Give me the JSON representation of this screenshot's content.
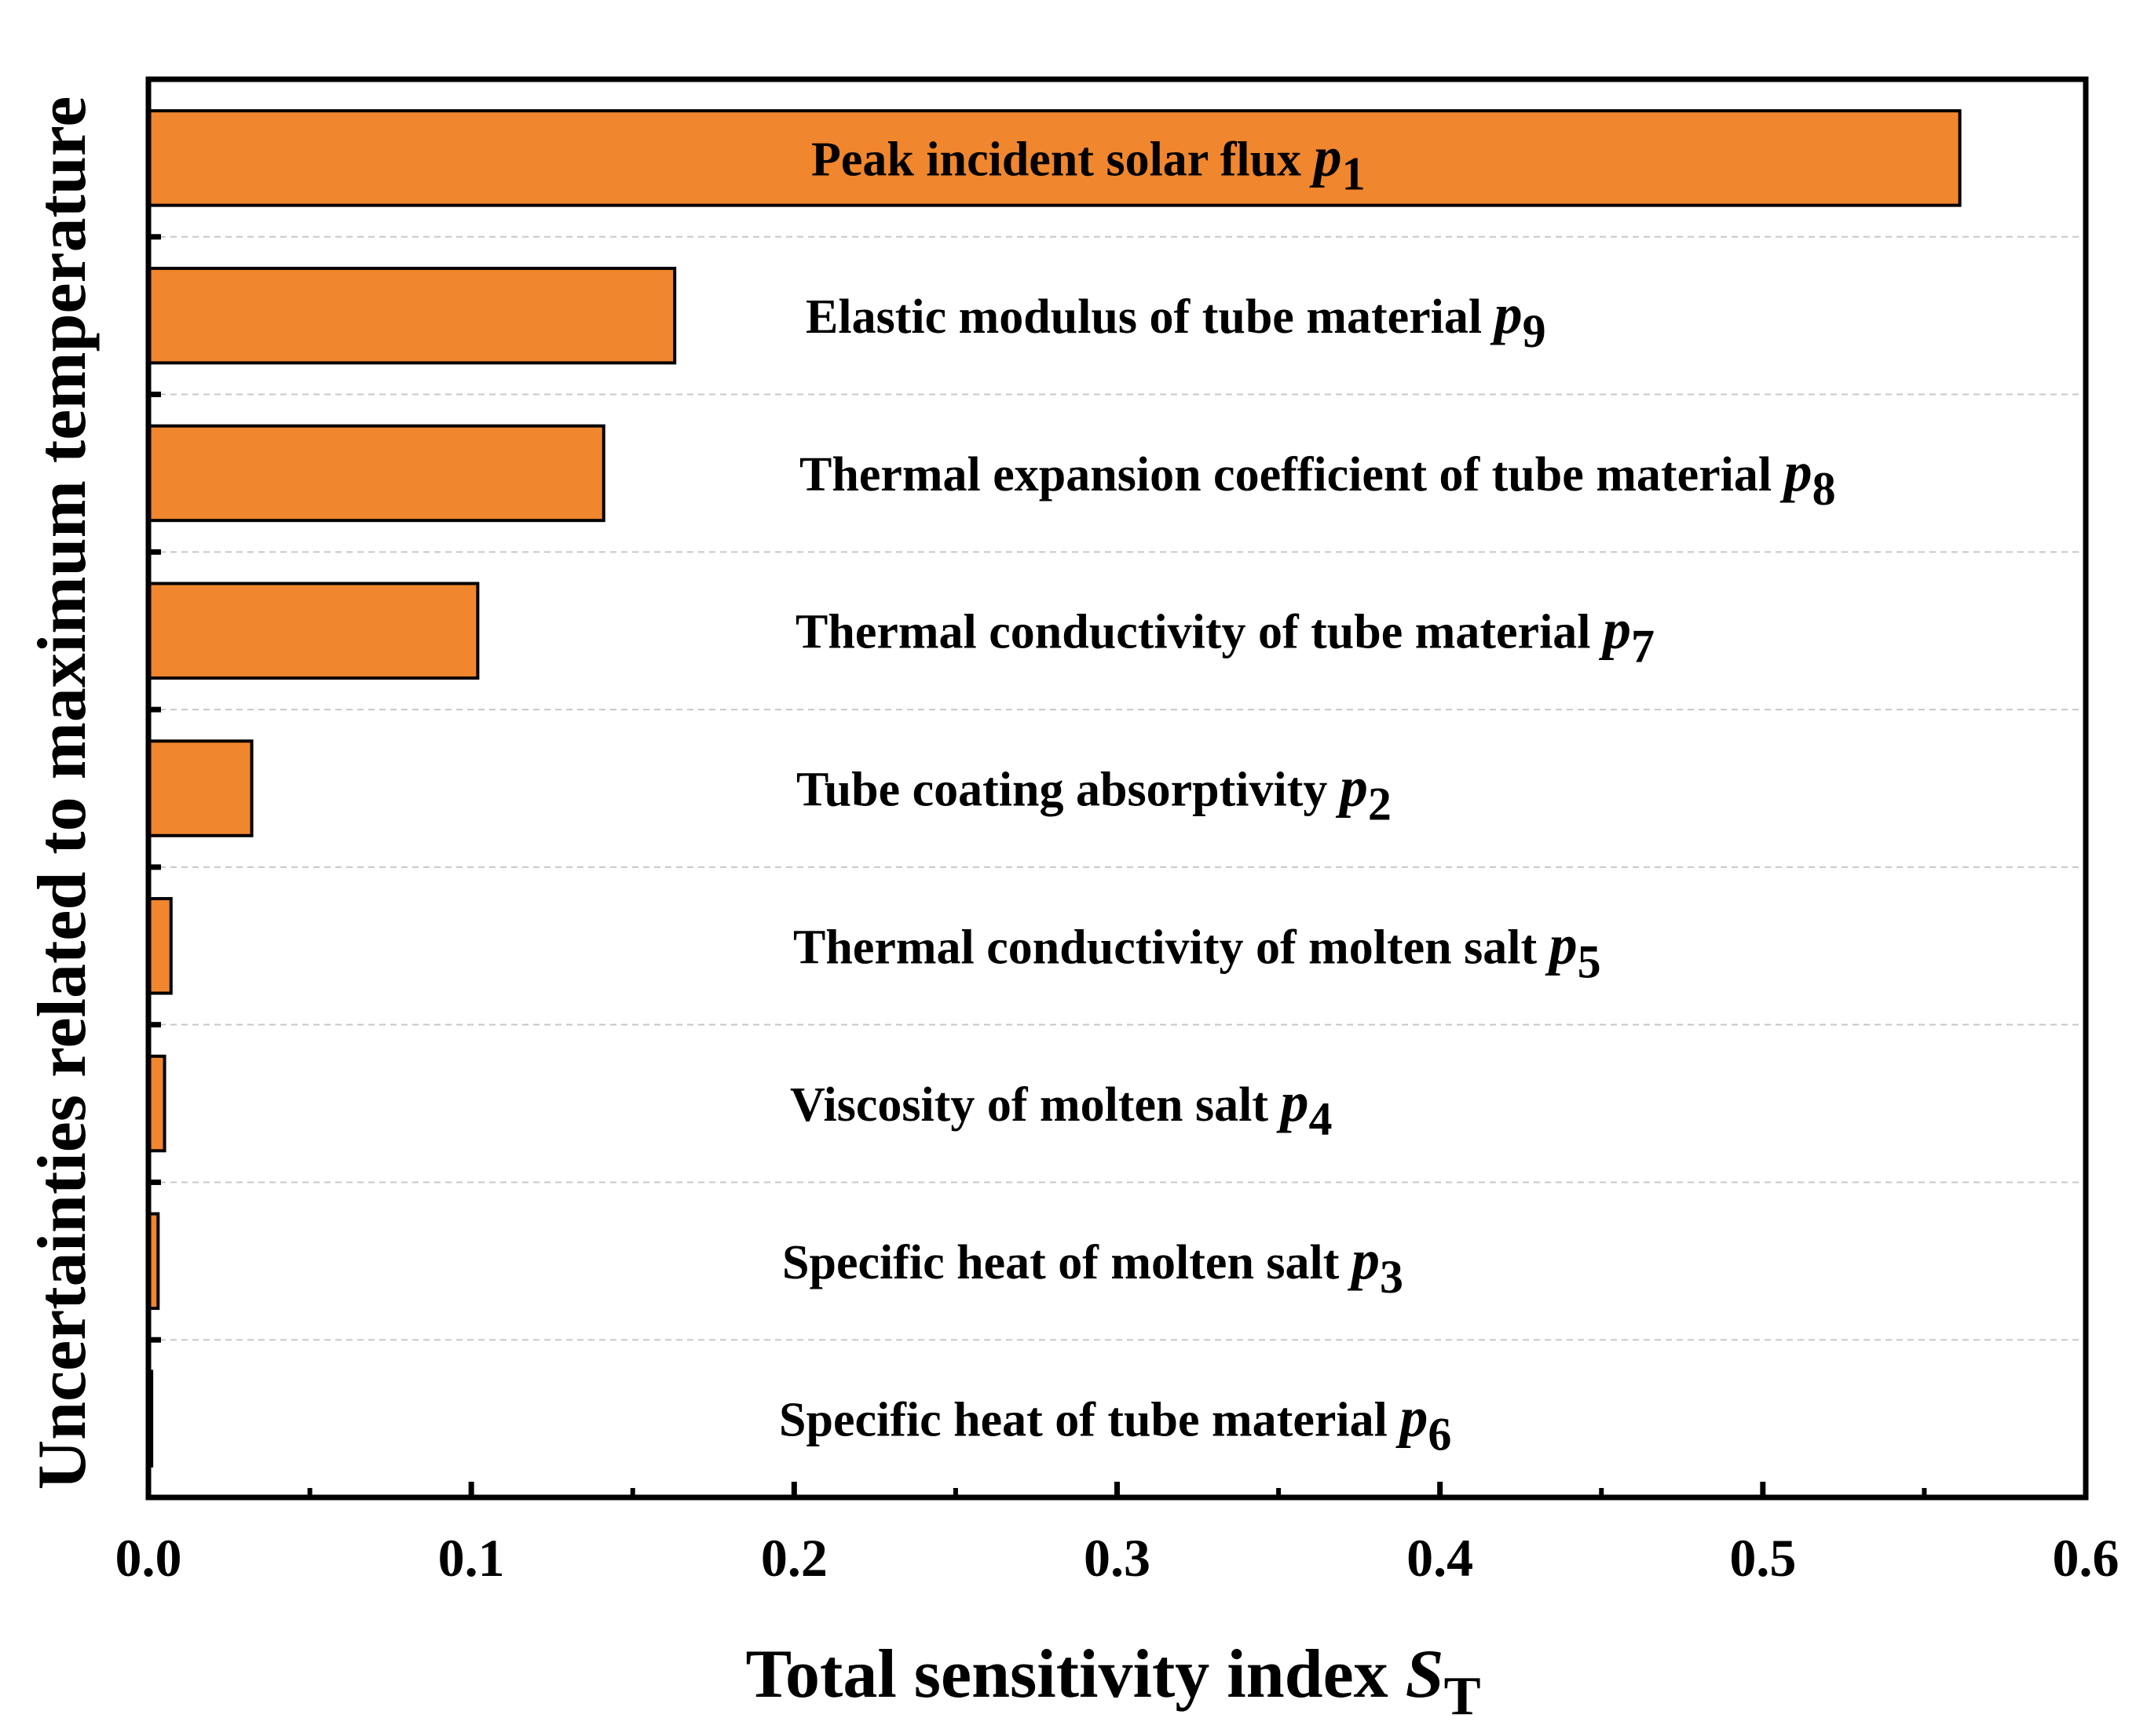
{
  "chart_data": {
    "type": "bar",
    "orientation": "horizontal",
    "title": "",
    "xlabel": "Total sensitivity index",
    "xlabel_symbol": "S",
    "xlabel_subscript": "T",
    "ylabel": "Uncertainties related to maximum temperature",
    "xlim": [
      0,
      0.6
    ],
    "x_ticks": [
      "0.0",
      "0.1",
      "0.2",
      "0.3",
      "0.4",
      "0.5",
      "0.6"
    ],
    "x_tick_values": [
      0,
      0.1,
      0.2,
      0.3,
      0.4,
      0.5,
      0.6
    ],
    "grid": "horizontal dashed",
    "bar_color": "#F0862D",
    "categories": [
      {
        "text": "Peak incident solar flux",
        "symbol": "p",
        "sub": "1",
        "value": 0.561
      },
      {
        "text": "Elastic modulus of tube material",
        "symbol": "p",
        "sub": "9",
        "value": 0.163
      },
      {
        "text": "Thermal expansion coefficient of tube material",
        "symbol": "p",
        "sub": "8",
        "value": 0.141
      },
      {
        "text": "Thermal conductivity of tube material",
        "symbol": "p",
        "sub": "7",
        "value": 0.102
      },
      {
        "text": "Tube coating absorptivity",
        "symbol": "p",
        "sub": "2",
        "value": 0.032
      },
      {
        "text": "Thermal conductivity of molten salt",
        "symbol": "p",
        "sub": "5",
        "value": 0.007
      },
      {
        "text": "Viscosity of molten salt",
        "symbol": "p",
        "sub": "4",
        "value": 0.005
      },
      {
        "text": "Specific heat of molten salt",
        "symbol": "p",
        "sub": "3",
        "value": 0.003
      },
      {
        "text": "Specific heat of tube material",
        "symbol": "p",
        "sub": "6",
        "value": 0.001
      }
    ]
  }
}
